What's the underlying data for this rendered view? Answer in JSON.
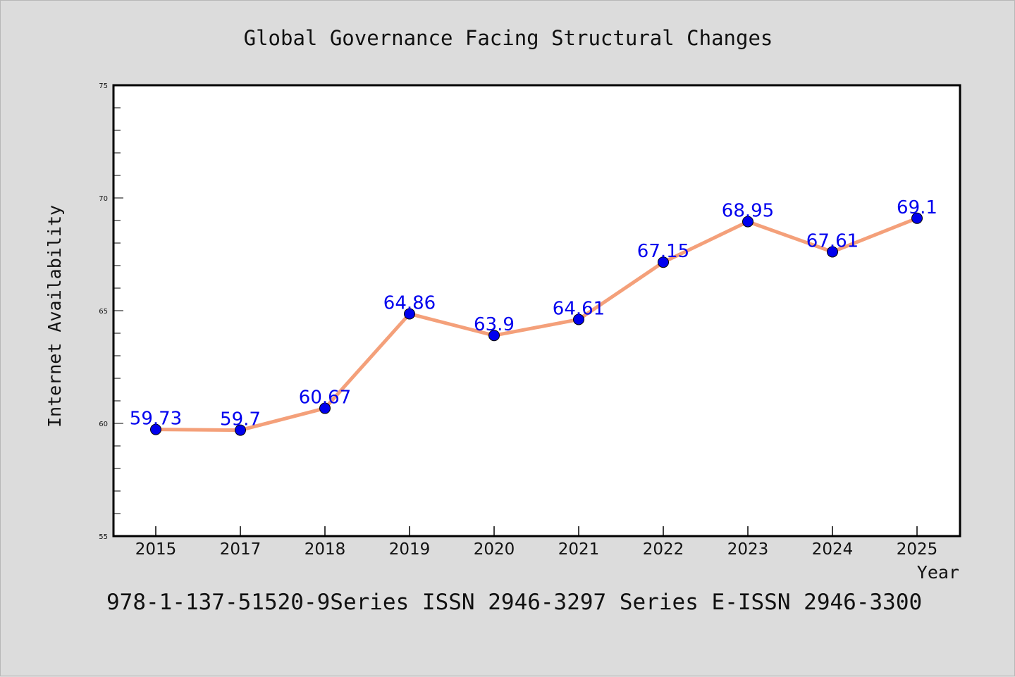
{
  "chart_data": {
    "type": "line",
    "title": "Global Governance Facing Structural Changes",
    "xlabel": "Year",
    "ylabel": "Internet Availability",
    "categories": [
      "2015",
      "2017",
      "2018",
      "2019",
      "2020",
      "2021",
      "2022",
      "2023",
      "2024",
      "2025"
    ],
    "series": [
      {
        "values": [
          59.73,
          59.7,
          60.67,
          64.86,
          63.9,
          64.61,
          67.15,
          68.95,
          67.61,
          69.1
        ],
        "data_labels": [
          "59.73",
          "59.7",
          "60.67",
          "64.86",
          "63.9",
          "64.61",
          "67.15",
          "68.95",
          "67.61",
          "69.1"
        ],
        "line_color": "#f4a07a",
        "marker_color": "#0000ee"
      }
    ],
    "ylim": [
      55,
      75
    ],
    "yticks": [
      "55",
      "60",
      "65",
      "70",
      "75"
    ],
    "grid": false,
    "legend": "none"
  },
  "footer": {
    "text": "978-1-137-51520-9Series ISSN 2946-3297 Series E-ISSN 2946-3300"
  },
  "colors": {
    "background": "#dcdcdc",
    "plot_background": "#ffffff",
    "label_color": "#0000ee"
  }
}
